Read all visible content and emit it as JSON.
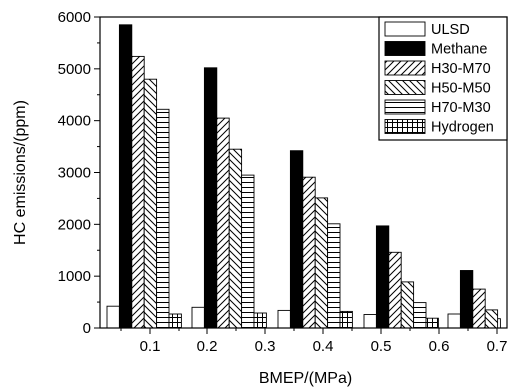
{
  "chart_data": {
    "type": "bar",
    "xlabel": "BMEP/(MPa)",
    "ylabel": "HC emissions/(ppm)",
    "ylim": [
      0,
      6000
    ],
    "y_ticks": [
      "0",
      "1000",
      "2000",
      "3000",
      "4000",
      "5000",
      "6000"
    ],
    "x_ticks": [
      "0.1",
      "0.2",
      "0.3",
      "0.4",
      "0.5",
      "0.6",
      "0.7"
    ],
    "legend_position": "top-right",
    "groups": 6,
    "series": [
      {
        "name": "ULSD",
        "pattern": "white",
        "values": [
          420,
          400,
          340,
          260,
          270,
          180
        ]
      },
      {
        "name": "Methane",
        "pattern": "black",
        "values": [
          5850,
          5020,
          3420,
          1970,
          1110,
          null
        ]
      },
      {
        "name": "H30-M70",
        "pattern": "hatch-forward",
        "values": [
          5240,
          4050,
          2910,
          1460,
          750,
          null
        ]
      },
      {
        "name": "H50-M50",
        "pattern": "hatch-backward",
        "values": [
          4800,
          3450,
          2510,
          890,
          350,
          null
        ]
      },
      {
        "name": "H70-M30",
        "pattern": "horizontal-lines",
        "values": [
          4220,
          2950,
          2010,
          490,
          220,
          null
        ]
      },
      {
        "name": "Hydrogen",
        "pattern": "grid",
        "values": [
          270,
          290,
          320,
          190,
          150,
          null
        ]
      }
    ],
    "colors": {
      "stroke": "#000000",
      "fill": "#ffffff",
      "solid": "#000000"
    }
  }
}
